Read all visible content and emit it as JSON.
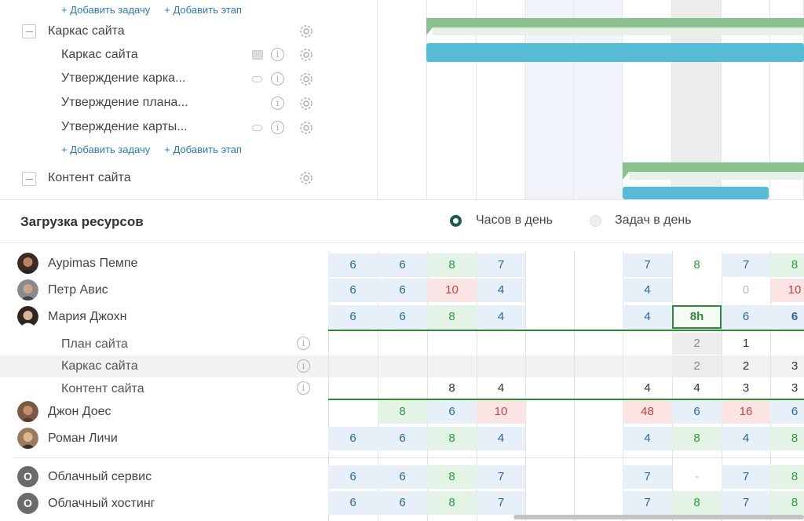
{
  "tasks": {
    "add_task": "+ Добавить задачу",
    "add_stage": "+ Добавить этап",
    "group1": {
      "name": "Каркас сайта",
      "items": [
        {
          "label": "Каркас сайта"
        },
        {
          "label": "Утверждение карка..."
        },
        {
          "label": "Утверждение плана..."
        },
        {
          "label": "Утверждение карты..."
        }
      ]
    },
    "group2": {
      "name": "Контент сайта"
    }
  },
  "resources": {
    "title": "Загрузка ресурсов",
    "mode_hours": "Часов в день",
    "mode_tasks": "Задач в день",
    "people": [
      {
        "name": "Аурimas Пемпе"
      },
      {
        "name": "Петр Авис"
      },
      {
        "name": "Мария Джохн"
      },
      {
        "name": "Джон Доес"
      },
      {
        "name": "Роман Личи"
      }
    ],
    "subtasks": [
      {
        "name": "План сайта"
      },
      {
        "name": "Каркас сайта"
      },
      {
        "name": "Контент сайта"
      }
    ],
    "services": [
      {
        "name": "Облачный сервис",
        "initial": "O"
      },
      {
        "name": "Облачный хостинг",
        "initial": "O"
      }
    ],
    "grid": {
      "r0": [
        "6",
        "6",
        "8",
        "7",
        "",
        "",
        "7",
        "8",
        "7",
        "8"
      ],
      "r1": [
        "6",
        "6",
        "10",
        "4",
        "",
        "",
        "4",
        "",
        "0",
        "10"
      ],
      "r2": [
        "6",
        "6",
        "8",
        "4",
        "",
        "",
        "4",
        "8h",
        "6",
        "6"
      ],
      "s0": [
        "",
        "",
        "",
        "",
        "",
        "",
        "",
        "2",
        "1",
        ""
      ],
      "s1": [
        "",
        "",
        "",
        "",
        "",
        "",
        "",
        "2",
        "2",
        "3"
      ],
      "s2": [
        "",
        "",
        "8",
        "4",
        "",
        "",
        "4",
        "4",
        "3",
        "3"
      ],
      "r3": [
        "",
        "8",
        "6",
        "10",
        "",
        "",
        "48",
        "6",
        "16",
        "6"
      ],
      "r4": [
        "6",
        "6",
        "8",
        "4",
        "",
        "",
        "4",
        "8",
        "4",
        "8"
      ],
      "c0": [
        "6",
        "6",
        "8",
        "7",
        "",
        "",
        "7",
        "-",
        "7",
        "8"
      ],
      "c1": [
        "6",
        "6",
        "8",
        "7",
        "",
        "",
        "7",
        "8",
        "7",
        "8"
      ]
    }
  },
  "colors": {
    "accent_green": "#2e8a3a",
    "link_blue": "#2a7ab8",
    "bar_blue": "#56bcd6",
    "bar_green": "#8cc08f"
  }
}
